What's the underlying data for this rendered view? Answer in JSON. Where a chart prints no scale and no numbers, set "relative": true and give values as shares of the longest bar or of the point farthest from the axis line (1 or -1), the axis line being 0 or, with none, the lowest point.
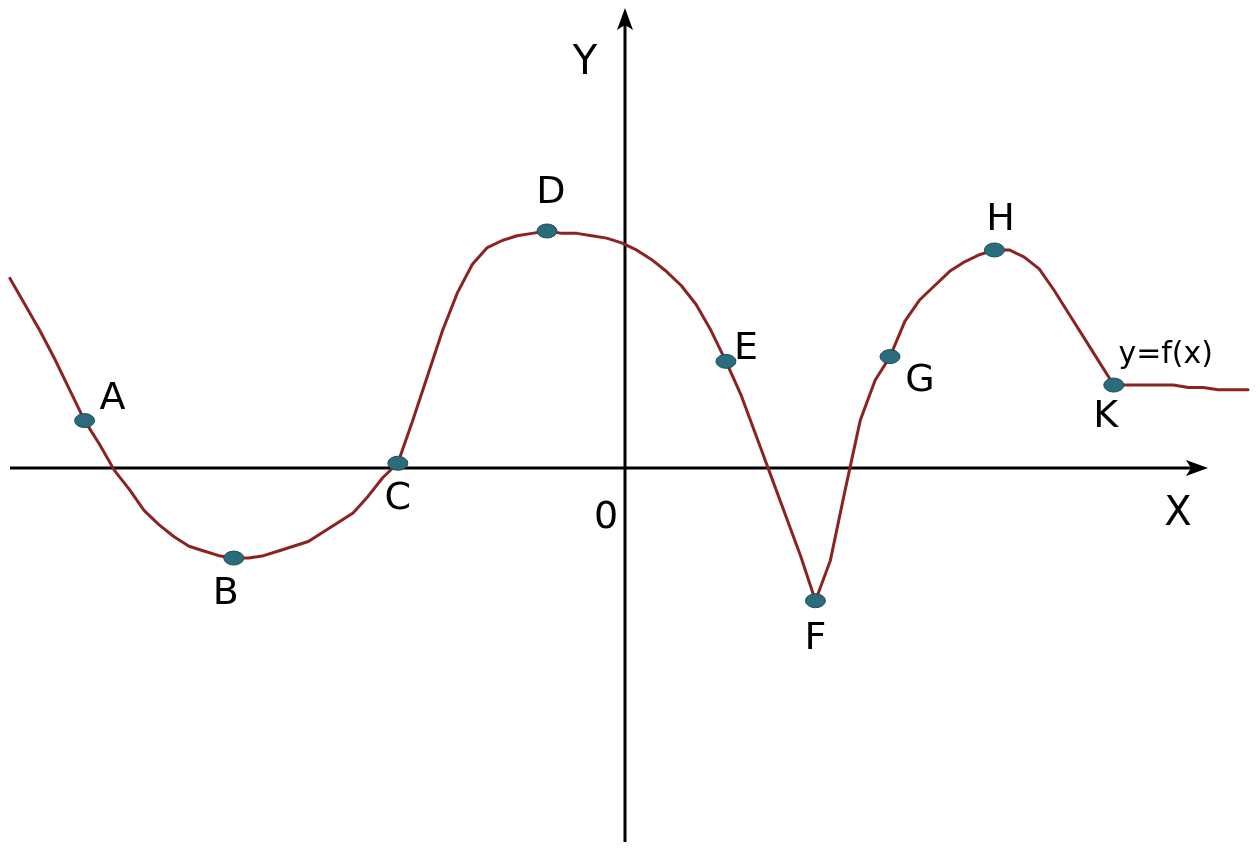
{
  "chart_data": {
    "type": "line",
    "relative": true,
    "xlabel": "X",
    "ylabel": "Y",
    "categories": [
      null,
      null,
      null,
      null,
      null,
      null,
      null,
      null,
      null,
      null,
      null,
      null,
      null,
      null,
      null,
      null,
      null,
      null,
      null,
      null,
      null,
      null,
      null,
      null,
      null,
      null,
      null,
      null,
      null,
      null,
      null,
      null,
      null,
      null,
      null,
      null,
      null,
      null,
      null,
      null,
      null,
      null,
      null,
      null,
      null,
      null,
      null,
      null,
      null,
      null,
      null,
      null,
      null,
      null,
      null,
      null,
      null,
      null,
      null,
      null,
      null,
      null,
      null,
      null,
      null,
      null,
      null,
      null,
      null,
      null,
      null,
      null,
      null,
      null,
      null,
      null,
      null,
      null,
      null,
      null,
      null,
      null,
      null,
      null
    ],
    "series": [
      {
        "color": "#8b2323",
        "values": [
          0.8,
          0.69,
          0.58,
          0.46,
          0.33,
          0.2,
          0.1,
          -0.01,
          -0.09,
          -0.18,
          -0.24,
          -0.29,
          -0.33,
          -0.35,
          -0.37,
          -0.38,
          -0.38,
          -0.37,
          -0.35,
          -0.33,
          -0.31,
          -0.27,
          -0.23,
          -0.19,
          -0.12,
          -0.04,
          0.02,
          0.2,
          0.39,
          0.58,
          0.74,
          0.86,
          0.93,
          0.96,
          0.98,
          0.99,
          1,
          0.99,
          0.99,
          0.98,
          0.97,
          0.95,
          0.92,
          0.88,
          0.83,
          0.77,
          0.69,
          0.58,
          0.45,
          0.31,
          0.14,
          -0.03,
          -0.2,
          -0.37,
          -0.56,
          -0.39,
          -0.09,
          0.2,
          0.37,
          0.47,
          0.62,
          0.71,
          0.77,
          0.83,
          0.87,
          0.9,
          0.92,
          0.92,
          0.89,
          0.84,
          0.75,
          0.65,
          0.55,
          0.45,
          0.35,
          0.35,
          0.35,
          0.35,
          0.35,
          0.34,
          0.34,
          0.33,
          0.33,
          0.33
        ]
      }
    ],
    "annotations": [
      "A",
      "B",
      "C",
      "D",
      "E",
      "F",
      "G",
      "H",
      "K",
      "y=f(x)",
      "0"
    ]
  }
}
